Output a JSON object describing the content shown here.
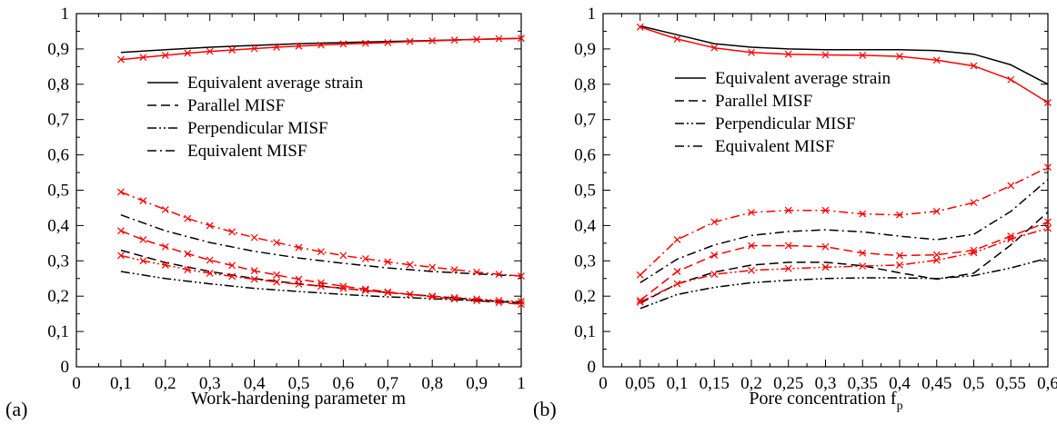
{
  "figure": {
    "panel_tags": [
      "(a)",
      "(b)"
    ]
  },
  "colors": {
    "black": "#000000",
    "red": "#ff0000"
  },
  "line_styles": {
    "Equivalent average strain": "solid",
    "Parallel MISF": "dashed",
    "Perpendicular MISF": "dash-dot-dot",
    "Equivalent MISF": "dash-dot"
  },
  "chart_data": [
    {
      "panel": "(a)",
      "type": "line",
      "title": "",
      "xlabel": "Work-hardening parameter m",
      "ylabel": "",
      "xlim": [
        0,
        1
      ],
      "ylim": [
        0,
        1
      ],
      "xticks": [
        "0",
        "0,1",
        "0,2",
        "0,3",
        "0,4",
        "0,5",
        "0,6",
        "0,7",
        "0,8",
        "0,9",
        "1"
      ],
      "yticks": [
        "0",
        "0,1",
        "0,2",
        "0,3",
        "0,4",
        "0,5",
        "0,6",
        "0,7",
        "0,8",
        "0,9",
        "1"
      ],
      "legend": [
        "Equivalent average strain",
        "Parallel MISF",
        "Perpendicular MISF",
        "Equivalent MISF"
      ],
      "legend_position": "upper-center",
      "grid": false,
      "series": [
        {
          "name": "Equivalent average strain",
          "color": "black",
          "marker": "none",
          "x": [
            0.1,
            0.2,
            0.3,
            0.4,
            0.5,
            0.6,
            0.7,
            0.8,
            0.9,
            1.0
          ],
          "y": [
            0.89,
            0.898,
            0.905,
            0.91,
            0.915,
            0.918,
            0.921,
            0.924,
            0.927,
            0.93
          ]
        },
        {
          "name": "Equivalent average strain",
          "color": "red",
          "marker": "x",
          "x": [
            0.1,
            0.15,
            0.2,
            0.25,
            0.3,
            0.35,
            0.4,
            0.45,
            0.5,
            0.55,
            0.6,
            0.65,
            0.7,
            0.75,
            0.8,
            0.85,
            0.9,
            0.95,
            1.0
          ],
          "y": [
            0.87,
            0.876,
            0.882,
            0.888,
            0.893,
            0.897,
            0.901,
            0.905,
            0.908,
            0.911,
            0.914,
            0.916,
            0.918,
            0.921,
            0.923,
            0.925,
            0.927,
            0.929,
            0.93
          ]
        },
        {
          "name": "Parallel MISF",
          "color": "black",
          "marker": "none",
          "x": [
            0.1,
            0.2,
            0.3,
            0.4,
            0.5,
            0.6,
            0.7,
            0.8,
            0.9,
            1.0
          ],
          "y": [
            0.33,
            0.295,
            0.27,
            0.25,
            0.235,
            0.222,
            0.21,
            0.2,
            0.19,
            0.18
          ]
        },
        {
          "name": "Parallel MISF",
          "color": "red",
          "marker": "x",
          "x": [
            0.1,
            0.15,
            0.2,
            0.25,
            0.3,
            0.35,
            0.4,
            0.45,
            0.5,
            0.55,
            0.6,
            0.65,
            0.7,
            0.75,
            0.8,
            0.85,
            0.9,
            0.95,
            1.0
          ],
          "y": [
            0.385,
            0.36,
            0.34,
            0.32,
            0.302,
            0.287,
            0.272,
            0.26,
            0.248,
            0.238,
            0.228,
            0.22,
            0.212,
            0.205,
            0.198,
            0.192,
            0.187,
            0.182,
            0.177
          ]
        },
        {
          "name": "Perpendicular MISF",
          "color": "black",
          "marker": "none",
          "x": [
            0.1,
            0.2,
            0.3,
            0.4,
            0.5,
            0.6,
            0.7,
            0.8,
            0.9,
            1.0
          ],
          "y": [
            0.27,
            0.25,
            0.235,
            0.222,
            0.213,
            0.205,
            0.198,
            0.193,
            0.187,
            0.183
          ]
        },
        {
          "name": "Perpendicular MISF",
          "color": "red",
          "marker": "x",
          "x": [
            0.1,
            0.15,
            0.2,
            0.25,
            0.3,
            0.35,
            0.4,
            0.45,
            0.5,
            0.55,
            0.6,
            0.65,
            0.7,
            0.75,
            0.8,
            0.85,
            0.9,
            0.95,
            1.0
          ],
          "y": [
            0.315,
            0.3,
            0.288,
            0.275,
            0.265,
            0.256,
            0.248,
            0.24,
            0.234,
            0.228,
            0.222,
            0.216,
            0.21,
            0.205,
            0.2,
            0.196,
            0.192,
            0.188,
            0.185
          ]
        },
        {
          "name": "Equivalent MISF",
          "color": "black",
          "marker": "none",
          "x": [
            0.1,
            0.2,
            0.3,
            0.4,
            0.5,
            0.6,
            0.7,
            0.8,
            0.9,
            1.0
          ],
          "y": [
            0.43,
            0.385,
            0.352,
            0.327,
            0.308,
            0.293,
            0.28,
            0.27,
            0.263,
            0.257
          ]
        },
        {
          "name": "Equivalent MISF",
          "color": "red",
          "marker": "x",
          "x": [
            0.1,
            0.15,
            0.2,
            0.25,
            0.3,
            0.35,
            0.4,
            0.45,
            0.5,
            0.55,
            0.6,
            0.65,
            0.7,
            0.75,
            0.8,
            0.85,
            0.9,
            0.95,
            1.0
          ],
          "y": [
            0.495,
            0.47,
            0.445,
            0.42,
            0.4,
            0.382,
            0.366,
            0.352,
            0.338,
            0.326,
            0.315,
            0.306,
            0.297,
            0.289,
            0.282,
            0.275,
            0.268,
            0.262,
            0.257
          ]
        }
      ]
    },
    {
      "panel": "(b)",
      "type": "line",
      "title": "",
      "xlabel": "Pore concentration f",
      "xlabel_subscript": "p",
      "ylabel": "",
      "xlim": [
        0,
        0.6
      ],
      "ylim": [
        0,
        1
      ],
      "xticks": [
        "0",
        "0,05",
        "0,1",
        "0,15",
        "0,2",
        "0,25",
        "0,3",
        "0,35",
        "0,4",
        "0,45",
        "0,5",
        "0,55",
        "0,6"
      ],
      "yticks": [
        "0",
        "0,1",
        "0,2",
        "0,3",
        "0,4",
        "0,5",
        "0,6",
        "0,7",
        "0,8",
        "0,9",
        "1"
      ],
      "legend": [
        "Equivalent average strain",
        "Parallel MISF",
        "Perpendicular MISF",
        "Equivalent MISF"
      ],
      "legend_position": "upper-center",
      "grid": false,
      "series": [
        {
          "name": "Equivalent average strain",
          "color": "black",
          "marker": "none",
          "x": [
            0.05,
            0.1,
            0.15,
            0.2,
            0.25,
            0.3,
            0.35,
            0.4,
            0.45,
            0.5,
            0.55,
            0.6
          ],
          "y": [
            0.965,
            0.94,
            0.915,
            0.905,
            0.9,
            0.898,
            0.898,
            0.898,
            0.895,
            0.885,
            0.855,
            0.8
          ]
        },
        {
          "name": "Equivalent average strain",
          "color": "red",
          "marker": "x",
          "x": [
            0.05,
            0.1,
            0.15,
            0.2,
            0.25,
            0.3,
            0.35,
            0.4,
            0.45,
            0.5,
            0.55,
            0.6
          ],
          "y": [
            0.962,
            0.928,
            0.903,
            0.89,
            0.885,
            0.883,
            0.882,
            0.879,
            0.868,
            0.852,
            0.813,
            0.748
          ]
        },
        {
          "name": "Parallel MISF",
          "color": "black",
          "marker": "none",
          "x": [
            0.05,
            0.1,
            0.15,
            0.2,
            0.25,
            0.3,
            0.35,
            0.4,
            0.45,
            0.5,
            0.55,
            0.6
          ],
          "y": [
            0.18,
            0.235,
            0.268,
            0.288,
            0.296,
            0.296,
            0.286,
            0.266,
            0.248,
            0.265,
            0.345,
            0.438
          ]
        },
        {
          "name": "Parallel MISF",
          "color": "red",
          "marker": "x",
          "x": [
            0.05,
            0.1,
            0.15,
            0.2,
            0.25,
            0.3,
            0.35,
            0.4,
            0.45,
            0.5,
            0.55,
            0.6
          ],
          "y": [
            0.188,
            0.27,
            0.316,
            0.343,
            0.343,
            0.34,
            0.322,
            0.315,
            0.317,
            0.33,
            0.37,
            0.41
          ]
        },
        {
          "name": "Perpendicular MISF",
          "color": "black",
          "marker": "none",
          "x": [
            0.05,
            0.1,
            0.15,
            0.2,
            0.25,
            0.3,
            0.35,
            0.4,
            0.45,
            0.5,
            0.55,
            0.6
          ],
          "y": [
            0.165,
            0.205,
            0.225,
            0.238,
            0.245,
            0.25,
            0.252,
            0.252,
            0.25,
            0.258,
            0.28,
            0.308
          ]
        },
        {
          "name": "Perpendicular MISF",
          "color": "red",
          "marker": "x",
          "x": [
            0.05,
            0.1,
            0.15,
            0.2,
            0.25,
            0.3,
            0.35,
            0.4,
            0.45,
            0.5,
            0.55,
            0.6
          ],
          "y": [
            0.183,
            0.235,
            0.262,
            0.273,
            0.278,
            0.282,
            0.285,
            0.288,
            0.302,
            0.323,
            0.362,
            0.392
          ]
        },
        {
          "name": "Equivalent MISF",
          "color": "black",
          "marker": "none",
          "x": [
            0.05,
            0.1,
            0.15,
            0.2,
            0.25,
            0.3,
            0.35,
            0.4,
            0.45,
            0.5,
            0.55,
            0.6
          ],
          "y": [
            0.238,
            0.305,
            0.345,
            0.372,
            0.383,
            0.388,
            0.382,
            0.37,
            0.36,
            0.375,
            0.44,
            0.53
          ]
        },
        {
          "name": "Equivalent MISF",
          "color": "red",
          "marker": "x",
          "x": [
            0.05,
            0.1,
            0.15,
            0.2,
            0.25,
            0.3,
            0.35,
            0.4,
            0.45,
            0.5,
            0.55,
            0.6
          ],
          "y": [
            0.26,
            0.36,
            0.41,
            0.437,
            0.443,
            0.443,
            0.433,
            0.43,
            0.44,
            0.465,
            0.513,
            0.565
          ]
        }
      ]
    }
  ]
}
